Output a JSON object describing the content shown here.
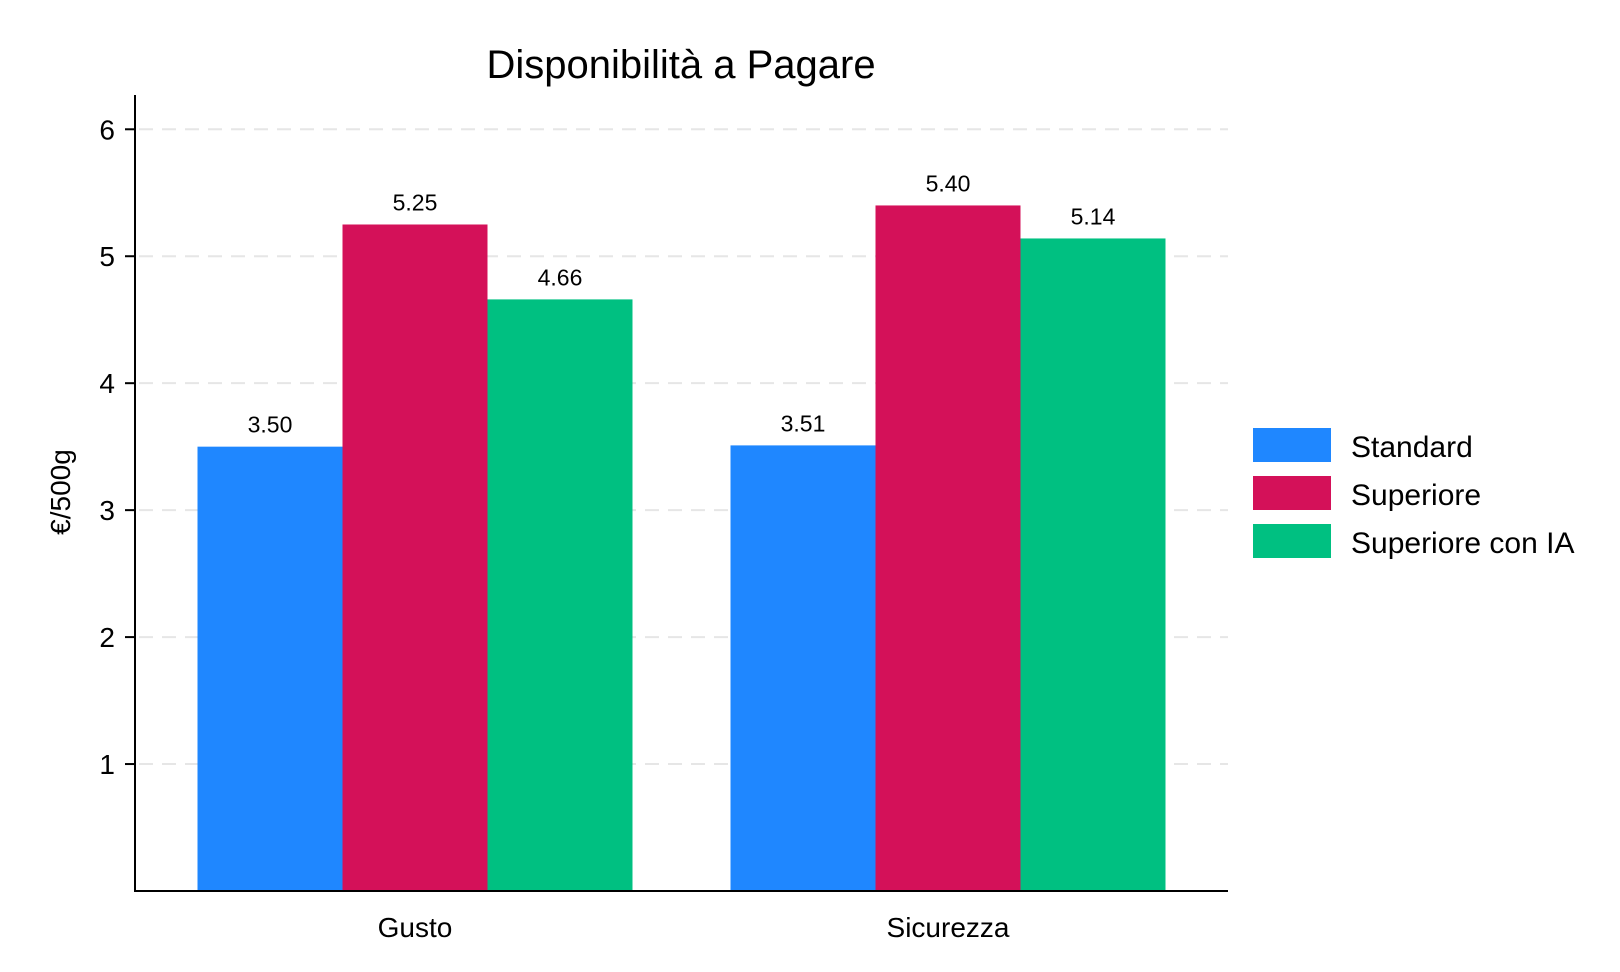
{
  "chart_data": {
    "type": "bar",
    "title": "Disponibilità a Pagare",
    "xlabel": "",
    "ylabel": "€/500g",
    "categories": [
      "Gusto",
      "Sicurezza"
    ],
    "series": [
      {
        "name": "Standard",
        "values": [
          3.5,
          3.51
        ],
        "labels": [
          "3.50",
          "3.51"
        ],
        "color": "#1f87ff"
      },
      {
        "name": "Superiore",
        "values": [
          5.25,
          5.4
        ],
        "labels": [
          "5.25",
          "5.40"
        ],
        "color": "#d41159"
      },
      {
        "name": "Superiore con IA",
        "values": [
          4.66,
          5.14
        ],
        "labels": [
          "4.66",
          "5.14"
        ],
        "color": "#00c081"
      }
    ],
    "yticks": [
      1,
      2,
      3,
      4,
      5,
      6
    ],
    "ylim": [
      0,
      6.27
    ],
    "grid": "horizontal dashed",
    "legend": "right"
  }
}
